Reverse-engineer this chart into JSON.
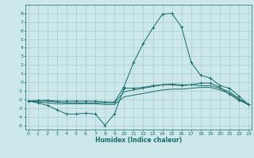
{
  "title": "",
  "xlabel": "Humidex (Indice chaleur)",
  "ylabel": "",
  "bg_color": "#cce8ea",
  "grid_color": "#aacccc",
  "line_color": "#1a6b6b",
  "x_ticks": [
    0,
    1,
    2,
    3,
    4,
    5,
    6,
    7,
    8,
    9,
    10,
    11,
    12,
    13,
    14,
    15,
    16,
    17,
    18,
    19,
    20,
    21,
    22,
    23
  ],
  "ylim": [
    -5.5,
    9.0
  ],
  "xlim": [
    -0.3,
    23.3
  ],
  "yticks": [
    -5,
    -4,
    -3,
    -2,
    -1,
    0,
    1,
    2,
    3,
    4,
    5,
    6,
    7,
    8
  ],
  "series": {
    "line_bottom": {
      "x": [
        0,
        1,
        2,
        3,
        4,
        5,
        6,
        7,
        8,
        9,
        10,
        11,
        12,
        13,
        14,
        15,
        16,
        17,
        18,
        19,
        20,
        21,
        22,
        23
      ],
      "y": [
        -2.2,
        -2.4,
        -2.7,
        -3.2,
        -3.7,
        -3.7,
        -3.6,
        -3.7,
        -5.0,
        -3.7,
        -0.7,
        -0.7,
        -0.6,
        -0.4,
        -0.3,
        -0.3,
        -0.4,
        -0.3,
        -0.1,
        -0.1,
        -0.6,
        -1.4,
        -2.1,
        -2.6
      ],
      "has_markers": true
    },
    "line_mid_low": {
      "x": [
        0,
        1,
        2,
        3,
        4,
        5,
        6,
        7,
        8,
        9,
        10,
        11,
        12,
        13,
        14,
        15,
        16,
        17,
        18,
        19,
        20,
        21,
        22,
        23
      ],
      "y": [
        -2.2,
        -2.3,
        -2.4,
        -2.5,
        -2.5,
        -2.5,
        -2.5,
        -2.5,
        -2.6,
        -2.6,
        -1.7,
        -1.5,
        -1.3,
        -1.1,
        -0.9,
        -0.8,
        -0.8,
        -0.7,
        -0.6,
        -0.6,
        -0.9,
        -1.3,
        -2.0,
        -2.6
      ],
      "has_markers": false
    },
    "line_mid_high": {
      "x": [
        0,
        1,
        2,
        3,
        4,
        5,
        6,
        7,
        8,
        9,
        10,
        11,
        12,
        13,
        14,
        15,
        16,
        17,
        18,
        19,
        20,
        21,
        22,
        23
      ],
      "y": [
        -2.2,
        -2.2,
        -2.2,
        -2.3,
        -2.4,
        -2.4,
        -2.4,
        -2.4,
        -2.4,
        -2.4,
        -1.1,
        -0.9,
        -0.7,
        -0.5,
        -0.3,
        -0.2,
        -0.3,
        -0.3,
        -0.4,
        -0.4,
        -0.7,
        -1.1,
        -1.9,
        -2.6
      ],
      "has_markers": false
    },
    "line_top": {
      "x": [
        0,
        1,
        2,
        3,
        4,
        5,
        6,
        7,
        8,
        9,
        10,
        11,
        12,
        13,
        14,
        15,
        16,
        17,
        18,
        19,
        20,
        21,
        22,
        23
      ],
      "y": [
        -2.2,
        -2.1,
        -2.1,
        -2.2,
        -2.2,
        -2.2,
        -2.2,
        -2.2,
        -2.3,
        -2.3,
        -0.5,
        2.3,
        4.5,
        6.3,
        7.9,
        8.0,
        6.4,
        2.3,
        0.8,
        0.5,
        -0.4,
        -0.7,
        -1.6,
        -2.6
      ],
      "has_markers": true
    }
  }
}
